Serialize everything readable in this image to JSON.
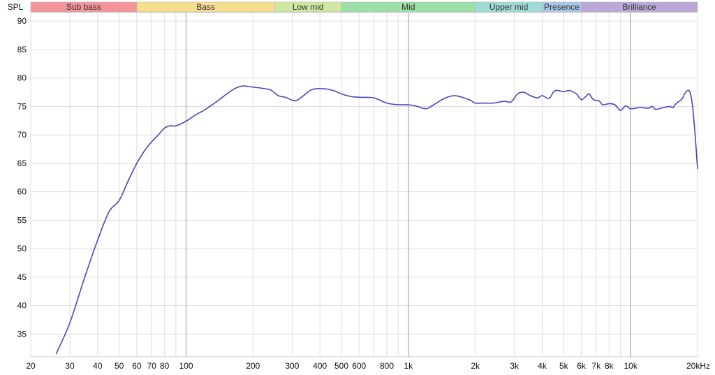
{
  "chart_data": {
    "type": "line",
    "title": "",
    "ylabel": "SPL",
    "xlabel": "",
    "x_scale": "log",
    "xlim": [
      20,
      20000
    ],
    "ylim": [
      31,
      91.5
    ],
    "grid": true,
    "x_tick_labels": [
      {
        "v": 20,
        "label": "20"
      },
      {
        "v": 30,
        "label": "30"
      },
      {
        "v": 40,
        "label": "40"
      },
      {
        "v": 50,
        "label": "50"
      },
      {
        "v": 60,
        "label": "60"
      },
      {
        "v": 70,
        "label": "70"
      },
      {
        "v": 80,
        "label": "80"
      },
      {
        "v": 100,
        "label": "100"
      },
      {
        "v": 200,
        "label": "200"
      },
      {
        "v": 300,
        "label": "300"
      },
      {
        "v": 400,
        "label": "400"
      },
      {
        "v": 500,
        "label": "500"
      },
      {
        "v": 600,
        "label": "600"
      },
      {
        "v": 800,
        "label": "800"
      },
      {
        "v": 1000,
        "label": "1k"
      },
      {
        "v": 2000,
        "label": "2k"
      },
      {
        "v": 3000,
        "label": "3k"
      },
      {
        "v": 4000,
        "label": "4k"
      },
      {
        "v": 5000,
        "label": "5k"
      },
      {
        "v": 6000,
        "label": "6k"
      },
      {
        "v": 7000,
        "label": "7k"
      },
      {
        "v": 8000,
        "label": "8k"
      },
      {
        "v": 10000,
        "label": "10k"
      },
      {
        "v": 20000,
        "label": "20kHz"
      }
    ],
    "y_ticks": [
      35,
      40,
      45,
      50,
      55,
      60,
      65,
      70,
      75,
      80,
      85,
      90
    ],
    "bands": [
      {
        "name": "Sub bass",
        "from": 20,
        "to": 60,
        "color": "#f4949a"
      },
      {
        "name": "Bass",
        "from": 60,
        "to": 250,
        "color": "#f7de8e"
      },
      {
        "name": "Low mid",
        "from": 250,
        "to": 500,
        "color": "#cfe8a0"
      },
      {
        "name": "Mid",
        "from": 500,
        "to": 2000,
        "color": "#9ddfa6"
      },
      {
        "name": "Upper mid",
        "from": 2000,
        "to": 4000,
        "color": "#9fdcd6"
      },
      {
        "name": "Presence",
        "from": 4000,
        "to": 6000,
        "color": "#a9c8e8"
      },
      {
        "name": "Brilliance",
        "from": 6000,
        "to": 20000,
        "color": "#bca8d8"
      }
    ],
    "line_color": "#4646c0",
    "series": [
      {
        "points": [
          [
            26,
            31.5
          ],
          [
            30,
            37
          ],
          [
            35,
            45
          ],
          [
            40,
            51.5
          ],
          [
            45,
            56.5
          ],
          [
            50,
            58.5
          ],
          [
            55,
            62
          ],
          [
            60,
            65
          ],
          [
            65,
            67.2
          ],
          [
            70,
            68.8
          ],
          [
            75,
            70
          ],
          [
            80,
            71.2
          ],
          [
            85,
            71.6
          ],
          [
            90,
            71.6
          ],
          [
            100,
            72.4
          ],
          [
            110,
            73.5
          ],
          [
            120,
            74.3
          ],
          [
            130,
            75.2
          ],
          [
            140,
            76.1
          ],
          [
            150,
            77
          ],
          [
            165,
            78.1
          ],
          [
            180,
            78.6
          ],
          [
            200,
            78.4
          ],
          [
            220,
            78.2
          ],
          [
            240,
            77.9
          ],
          [
            260,
            76.9
          ],
          [
            280,
            76.6
          ],
          [
            310,
            76
          ],
          [
            340,
            77
          ],
          [
            370,
            78
          ],
          [
            420,
            78.1
          ],
          [
            460,
            77.8
          ],
          [
            500,
            77.2
          ],
          [
            560,
            76.7
          ],
          [
            620,
            76.6
          ],
          [
            700,
            76.5
          ],
          [
            800,
            75.6
          ],
          [
            900,
            75.3
          ],
          [
            1000,
            75.3
          ],
          [
            1100,
            75
          ],
          [
            1200,
            74.6
          ],
          [
            1300,
            75.3
          ],
          [
            1450,
            76.4
          ],
          [
            1600,
            76.9
          ],
          [
            1750,
            76.6
          ],
          [
            1900,
            76.1
          ],
          [
            2000,
            75.6
          ],
          [
            2200,
            75.6
          ],
          [
            2400,
            75.6
          ],
          [
            2700,
            75.9
          ],
          [
            2900,
            75.8
          ],
          [
            3100,
            77.2
          ],
          [
            3300,
            77.5
          ],
          [
            3500,
            77
          ],
          [
            3800,
            76.5
          ],
          [
            4000,
            76.9
          ],
          [
            4300,
            76.4
          ],
          [
            4500,
            77.6
          ],
          [
            4700,
            77.8
          ],
          [
            5000,
            77.6
          ],
          [
            5300,
            77.8
          ],
          [
            5700,
            77.2
          ],
          [
            6000,
            76.2
          ],
          [
            6300,
            76.8
          ],
          [
            6500,
            77.2
          ],
          [
            6800,
            76.2
          ],
          [
            7200,
            76
          ],
          [
            7500,
            75.3
          ],
          [
            8000,
            75.5
          ],
          [
            8500,
            75.3
          ],
          [
            9000,
            74.3
          ],
          [
            9500,
            75.1
          ],
          [
            10000,
            74.6
          ],
          [
            11000,
            74.8
          ],
          [
            12000,
            74.7
          ],
          [
            12500,
            75
          ],
          [
            13000,
            74.5
          ],
          [
            14000,
            74.8
          ],
          [
            15000,
            75
          ],
          [
            15500,
            74.8
          ],
          [
            16000,
            75.5
          ],
          [
            17000,
            76.3
          ],
          [
            17500,
            77.2
          ],
          [
            18000,
            77.8
          ],
          [
            18500,
            77.5
          ],
          [
            19000,
            75
          ],
          [
            19500,
            70
          ],
          [
            20000,
            64
          ]
        ]
      }
    ]
  }
}
